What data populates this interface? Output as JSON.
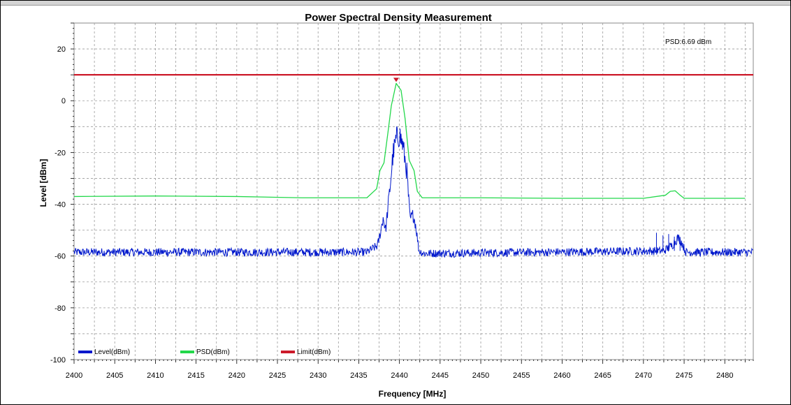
{
  "chart_data": {
    "type": "line",
    "title": "Power Spectral Density Measurement",
    "xlabel": "Frequency [MHz]",
    "ylabel": "Level [dBm]",
    "xlim": [
      2400,
      2483.5
    ],
    "ylim": [
      -100,
      30
    ],
    "x_ticks": [
      2400,
      2405,
      2410,
      2415,
      2420,
      2425,
      2430,
      2435,
      2440,
      2445,
      2450,
      2455,
      2460,
      2465,
      2470,
      2475,
      2480
    ],
    "y_ticks": [
      20,
      0,
      -20,
      -40,
      -60,
      -80,
      -100
    ],
    "grid": true,
    "legend_position": "bottom-left",
    "annotation": "PSD:6.69 dBm",
    "peak": {
      "x": 2439.6,
      "y": 6.69
    },
    "series": [
      {
        "name": "Level(dBm)",
        "color": "#0018cc",
        "style": "noise",
        "x": [
          2400,
          2436,
          2437.3,
          2437.6,
          2438.0,
          2438.3,
          2438.8,
          2439.2,
          2439.6,
          2440.0,
          2440.4,
          2440.9,
          2441.3,
          2441.7,
          2442.0,
          2442.4,
          2443.0,
          2472.5,
          2473.5,
          2474.2,
          2474.6,
          2475.2,
          2483.5
        ],
        "values": [
          -58.5,
          -58.5,
          -56,
          -52,
          -45,
          -50,
          -35,
          -21,
          -15,
          -13,
          -17,
          -27,
          -46,
          -44,
          -48,
          -58,
          -59,
          -58,
          -56,
          -53,
          -54,
          -58.5,
          -58.5
        ],
        "noise_amplitude": 1.0
      },
      {
        "name": "PSD(dBm)",
        "color": "#22d84a",
        "style": "line",
        "x": [
          2400,
          2410,
          2420,
          2428,
          2436,
          2437.2,
          2437.6,
          2438.1,
          2438.6,
          2439.0,
          2439.6,
          2440.2,
          2440.7,
          2441.2,
          2441.8,
          2442.2,
          2442.8,
          2450,
          2460,
          2470,
          2472.7,
          2473.3,
          2473.9,
          2474.4,
          2475,
          2482.5
        ],
        "values": [
          -37,
          -36.8,
          -37,
          -37.5,
          -37.5,
          -34,
          -27,
          -24,
          -12,
          -2,
          6.69,
          4,
          -7,
          -23,
          -27,
          -35,
          -37.5,
          -37.5,
          -37.7,
          -37.7,
          -36.5,
          -35,
          -34.8,
          -36.2,
          -37.7,
          -37.7
        ]
      },
      {
        "name": "Limit(dBm)",
        "color": "#cc1a2a",
        "style": "line",
        "x": [
          2400,
          2483.5
        ],
        "values": [
          10,
          10
        ]
      }
    ]
  }
}
